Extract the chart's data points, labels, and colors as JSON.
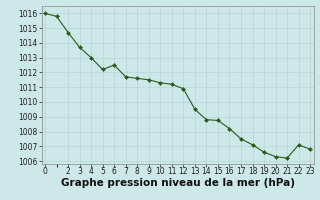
{
  "x": [
    0,
    1,
    2,
    3,
    4,
    5,
    6,
    7,
    8,
    9,
    10,
    11,
    12,
    13,
    14,
    15,
    16,
    17,
    18,
    19,
    20,
    21,
    22,
    23
  ],
  "y": [
    1016.0,
    1015.8,
    1014.7,
    1013.7,
    1013.0,
    1012.2,
    1012.5,
    1011.7,
    1011.6,
    1011.5,
    1011.3,
    1011.2,
    1010.9,
    1009.5,
    1008.8,
    1008.75,
    1008.2,
    1007.5,
    1007.1,
    1006.6,
    1006.3,
    1006.2,
    1007.1,
    1006.8
  ],
  "ylim": [
    1005.8,
    1016.5
  ],
  "xlim": [
    -0.3,
    23.3
  ],
  "yticks": [
    1006,
    1007,
    1008,
    1009,
    1010,
    1011,
    1012,
    1013,
    1014,
    1015,
    1016
  ],
  "xticks": [
    0,
    2,
    3,
    4,
    5,
    6,
    7,
    8,
    9,
    10,
    11,
    12,
    13,
    14,
    15,
    16,
    17,
    18,
    19,
    20,
    21,
    22,
    23
  ],
  "xlabel": "Graphe pression niveau de la mer (hPa)",
  "line_color": "#2d5a1b",
  "marker_color": "#2d5a1b",
  "bg_color": "#cce8e8",
  "grid_major_color": "#b8d4d4",
  "grid_minor_color": "#d0e8e8",
  "tick_fontsize": 5.5,
  "xlabel_fontsize": 7.5
}
